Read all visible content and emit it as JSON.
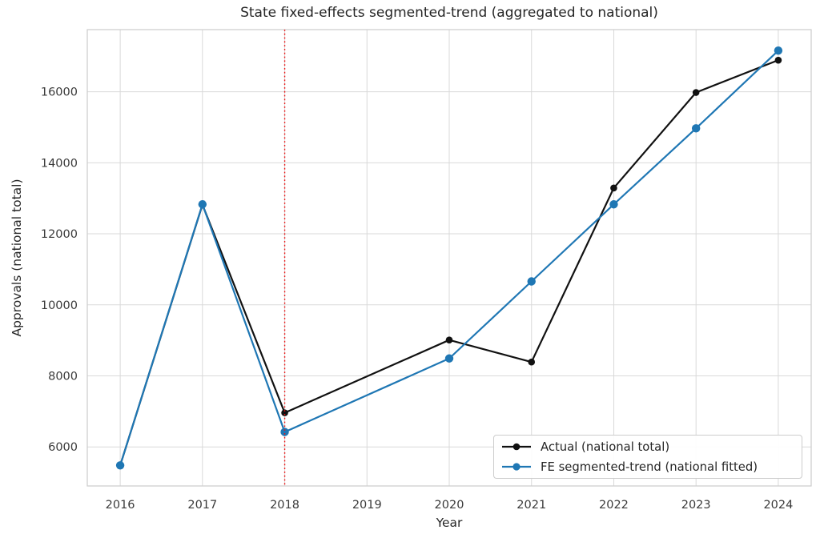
{
  "chart_data": {
    "type": "line",
    "title": "State fixed-effects segmented-trend (aggregated to national)",
    "xlabel": "Year",
    "ylabel": "Approvals (national total)",
    "x_ticks": [
      2016,
      2017,
      2018,
      2019,
      2020,
      2021,
      2022,
      2023,
      2024
    ],
    "y_ticks": [
      6000,
      8000,
      10000,
      12000,
      14000,
      16000
    ],
    "xlim": [
      2015.6,
      2024.4
    ],
    "ylim": [
      4900,
      17750
    ],
    "grid": true,
    "legend_position": "lower right",
    "x": [
      2016,
      2017,
      2018,
      2020,
      2021,
      2022,
      2023,
      2024
    ],
    "series": [
      {
        "name": "Actual (national total)",
        "color": "#111111",
        "marker_radius": 4.3,
        "values": [
          5480,
          12820,
          6960,
          9010,
          8390,
          13290,
          15980,
          16890
        ]
      },
      {
        "name": "FE segmented-trend (national fitted)",
        "color": "#1f77b4",
        "marker_radius": 5.2,
        "values": [
          5480,
          12830,
          6420,
          8490,
          10660,
          12830,
          14970,
          17160
        ]
      }
    ],
    "vline": {
      "x": 2018,
      "color": "#ee1111",
      "style": "dotted"
    },
    "colors": {
      "grid": "#d9d9d9",
      "border": "#cccccc",
      "tick_text": "#3a3a3a"
    }
  }
}
